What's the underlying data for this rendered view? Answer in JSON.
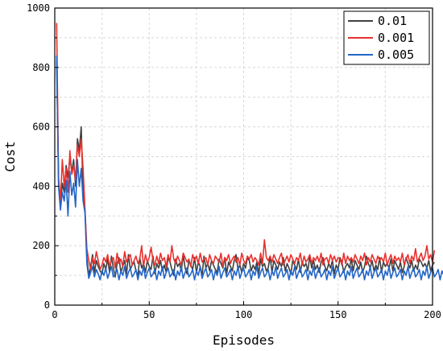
{
  "chart_data": {
    "type": "line",
    "xlabel": "Episodes",
    "ylabel": "Cost",
    "xlim": [
      0,
      200
    ],
    "ylim": [
      0,
      1000
    ],
    "xticks": [
      0,
      50,
      100,
      150,
      200
    ],
    "yticks": [
      0,
      200,
      400,
      600,
      800,
      1000
    ],
    "grid": true,
    "legend_position": "top-right",
    "series": [
      {
        "name": "0.01",
        "color": "#404040",
        "values": [
          820,
          420,
          330,
          410,
          380,
          470,
          430,
          500,
          450,
          490,
          400,
          560,
          520,
          600,
          380,
          320,
          160,
          100,
          130,
          170,
          110,
          150,
          130,
          115,
          105,
          140,
          120,
          155,
          110,
          165,
          125,
          95,
          140,
          160,
          110,
          130,
          150,
          105,
          170,
          120,
          135,
          145,
          115,
          100,
          160,
          125,
          140,
          110,
          150,
          130,
          120,
          165,
          105,
          140,
          125,
          150,
          115,
          135,
          110,
          160,
          145,
          120,
          100,
          155,
          130,
          140,
          115,
          170,
          125,
          105,
          150,
          135,
          120,
          160,
          110,
          145,
          130,
          100,
          165,
          125,
          140,
          115,
          150,
          135,
          120,
          110,
          155,
          140,
          125,
          160,
          105,
          145,
          130,
          115,
          150,
          170,
          120,
          135,
          110,
          140,
          125,
          160,
          150,
          115,
          135,
          120,
          145,
          105,
          155,
          130,
          140,
          115,
          125,
          165,
          110,
          150,
          135,
          120,
          145,
          130,
          160,
          115,
          140,
          125,
          105,
          150,
          135,
          120,
          155,
          110,
          145,
          130,
          140,
          115,
          165,
          125,
          150,
          120,
          135,
          110,
          145,
          160,
          130,
          115,
          140,
          125,
          150,
          105,
          135,
          120,
          160,
          145,
          110,
          130,
          140,
          125,
          155,
          115,
          150,
          135,
          120,
          145,
          110,
          130,
          165,
          140,
          125,
          150,
          115,
          135,
          120,
          160,
          110,
          145,
          130,
          140,
          125,
          155,
          115,
          150,
          135,
          120,
          145,
          110,
          130,
          160,
          140,
          125,
          150,
          115,
          135,
          120,
          155,
          145,
          130,
          140,
          125,
          150,
          115,
          135,
          145
        ]
      },
      {
        "name": "0.001",
        "color": "#e8312e",
        "values": [
          950,
          430,
          350,
          490,
          400,
          460,
          380,
          520,
          440,
          470,
          420,
          540,
          500,
          560,
          460,
          320,
          190,
          150,
          120,
          160,
          140,
          180,
          150,
          120,
          135,
          160,
          145,
          170,
          130,
          150,
          160,
          125,
          175,
          140,
          155,
          130,
          180,
          145,
          160,
          170,
          135,
          150,
          165,
          140,
          155,
          200,
          130,
          170,
          145,
          160,
          195,
          150,
          135,
          165,
          140,
          175,
          150,
          160,
          130,
          170,
          145,
          200,
          155,
          140,
          165,
          150,
          135,
          175,
          160,
          145,
          155,
          130,
          170,
          150,
          165,
          140,
          175,
          145,
          155,
          160,
          135,
          170,
          150,
          140,
          165,
          155,
          145,
          175,
          130,
          160,
          150,
          170,
          140,
          155,
          165,
          145,
          160,
          135,
          175,
          150,
          140,
          165,
          155,
          170,
          145,
          160,
          150,
          135,
          175,
          140,
          220,
          160,
          150,
          165,
          145,
          170,
          155,
          140,
          160,
          175,
          135,
          150,
          165,
          145,
          170,
          155,
          140,
          160,
          150,
          175,
          135,
          165,
          145,
          155,
          170,
          140,
          160,
          150,
          165,
          145,
          175,
          135,
          155,
          160,
          140,
          170,
          150,
          165,
          145,
          160,
          155,
          135,
          175,
          140,
          165,
          150,
          160,
          145,
          170,
          155,
          140,
          165,
          150,
          175,
          135,
          160,
          145,
          170,
          155,
          140,
          165,
          150,
          160,
          145,
          175,
          135,
          155,
          170,
          140,
          165,
          150,
          160,
          145,
          175,
          135,
          155,
          170,
          140,
          165,
          150,
          190,
          145,
          160,
          175,
          150,
          165,
          200,
          155,
          170,
          145,
          185
        ]
      },
      {
        "name": "0.005",
        "color": "#2366c8",
        "values": [
          840,
          400,
          320,
          380,
          350,
          420,
          300,
          450,
          370,
          410,
          330,
          490,
          400,
          460,
          350,
          310,
          140,
          90,
          110,
          130,
          95,
          120,
          105,
          85,
          115,
          100,
          125,
          90,
          110,
          130,
          95,
          105,
          120,
          85,
          115,
          100,
          130,
          90,
          110,
          125,
          95,
          105,
          120,
          85,
          115,
          100,
          130,
          90,
          110,
          125,
          95,
          105,
          120,
          85,
          115,
          100,
          130,
          90,
          110,
          125,
          95,
          105,
          120,
          85,
          115,
          100,
          130,
          90,
          110,
          125,
          95,
          105,
          120,
          85,
          115,
          100,
          130,
          90,
          110,
          125,
          95,
          105,
          120,
          85,
          115,
          100,
          130,
          90,
          110,
          125,
          95,
          105,
          120,
          85,
          115,
          100,
          130,
          90,
          110,
          125,
          95,
          105,
          120,
          85,
          115,
          100,
          130,
          90,
          110,
          125,
          95,
          105,
          120,
          85,
          115,
          100,
          130,
          90,
          110,
          125,
          95,
          105,
          120,
          85,
          115,
          100,
          130,
          90,
          110,
          125,
          95,
          105,
          120,
          85,
          115,
          100,
          130,
          90,
          110,
          125,
          95,
          105,
          120,
          85,
          115,
          100,
          130,
          90,
          110,
          125,
          95,
          105,
          120,
          85,
          115,
          100,
          130,
          90,
          110,
          125,
          95,
          105,
          120,
          85,
          115,
          100,
          130,
          90,
          110,
          125,
          95,
          105,
          120,
          85,
          115,
          100,
          130,
          90,
          110,
          125,
          95,
          105,
          120,
          85,
          115,
          100,
          130,
          90,
          110,
          125,
          95,
          105,
          120,
          85,
          115,
          100,
          130,
          90,
          110,
          125,
          95,
          105,
          120,
          85,
          115,
          100,
          130
        ]
      }
    ]
  }
}
